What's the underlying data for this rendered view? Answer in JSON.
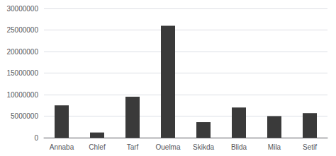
{
  "chart_data": {
    "type": "bar",
    "categories": [
      "Annaba",
      "Chlef",
      "Tarf",
      "Ouelma",
      "Skikda",
      "Blida",
      "Mila",
      "Setif"
    ],
    "values": [
      7500000,
      1200000,
      9500000,
      26000000,
      3600000,
      7000000,
      5000000,
      5700000
    ],
    "color": "#3a3a3a",
    "ylim": [
      0,
      30000000
    ],
    "yticks": [
      0,
      5000000,
      10000000,
      15000000,
      20000000,
      25000000,
      30000000
    ],
    "grid": true
  }
}
